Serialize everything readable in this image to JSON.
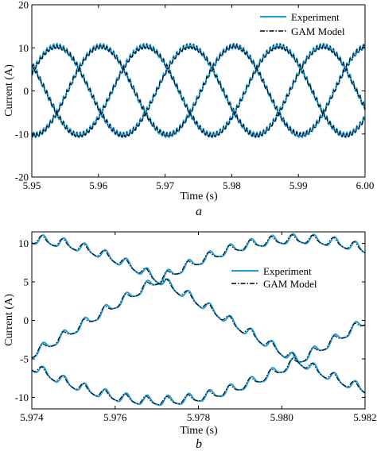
{
  "colors": {
    "experiment": "#1f9bd7",
    "model": "#000000",
    "axis": "#000000"
  },
  "chart_data": [
    {
      "type": "line",
      "panel_label": "a",
      "title": "",
      "xlabel": "Time (s)",
      "ylabel": "Current (A)",
      "xlim": [
        5.95,
        6.0
      ],
      "ylim": [
        -20,
        20
      ],
      "xticks": [
        5.95,
        5.96,
        5.97,
        5.98,
        5.99,
        6.0
      ],
      "xtick_labels": [
        "5.95",
        "5.96",
        "5.97",
        "5.98",
        "5.99",
        "6.00"
      ],
      "yticks": [
        20,
        10,
        0,
        -10,
        -20
      ],
      "ytick_labels": [
        "20",
        "10",
        "0",
        "-10",
        "-20"
      ],
      "grid": false,
      "legend_position": "top-right",
      "waveform": {
        "amplitude": 10.3,
        "frequency_hz": 50,
        "phase_offsets_deg": [
          83,
          -37,
          -157
        ],
        "ripple_amplitude": 0.55,
        "ripple_frequency_hz": 2000
      },
      "series": [
        {
          "name": "Experiment",
          "style": "solid",
          "color": "#1f9bd7"
        },
        {
          "name": "GAM Model",
          "style": "dashdot",
          "color": "#000000"
        }
      ]
    },
    {
      "type": "line",
      "panel_label": "b",
      "title": "",
      "xlabel": "Time (s)",
      "ylabel": "Current (A)",
      "xlim": [
        5.974,
        5.982
      ],
      "ylim": [
        -11.5,
        11.5
      ],
      "xticks": [
        5.974,
        5.976,
        5.978,
        5.98,
        5.982
      ],
      "xtick_labels": [
        "5.974",
        "5.976",
        "5.978",
        "5.980",
        "5.982"
      ],
      "yticks": [
        10,
        5,
        0,
        -5,
        -10
      ],
      "ytick_labels": [
        "10",
        "5",
        "0",
        "-5",
        "-10"
      ],
      "grid": false,
      "legend_position": "top-right",
      "waveform": {
        "amplitude": 10.5,
        "frequency_hz": 50,
        "phase_offsets_deg": [
          83,
          -37,
          -157
        ],
        "ripple_amplitude": 0.6,
        "ripple_frequency_hz": 2000
      },
      "series": [
        {
          "name": "Experiment",
          "style": "solid",
          "color": "#1f9bd7"
        },
        {
          "name": "GAM Model",
          "style": "dashdot",
          "color": "#000000"
        }
      ]
    }
  ]
}
